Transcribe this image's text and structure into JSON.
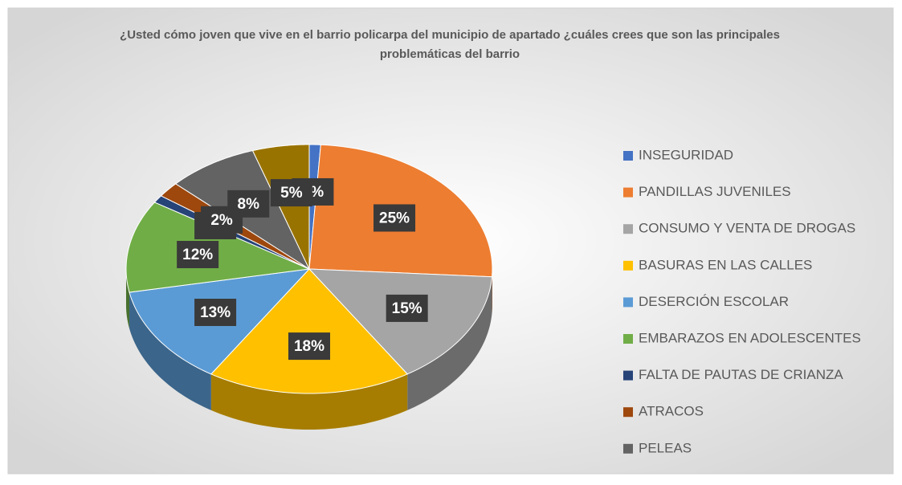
{
  "chart_data": {
    "type": "pie",
    "title": "¿Usted cómo joven que vive en el barrio policarpa del municipio de apartado ¿cuáles crees que son las principales problemáticas del barrio",
    "categories": [
      "INSEGURIDAD",
      "PANDILLAS JUVENILES",
      "CONSUMO Y VENTA DE DROGAS",
      "BASURAS EN LAS CALLES",
      "DESERCIÓN ESCOLAR",
      "EMBARAZOS EN ADOLESCENTES",
      "FALTA DE PAUTAS DE CRIANZA",
      "ATRACOS",
      "PELEAS",
      null
    ],
    "values": [
      1,
      25,
      15,
      18,
      13,
      12,
      1,
      2,
      8,
      5
    ],
    "value_labels": [
      "1%",
      "25%",
      "15%",
      "18%",
      "13%",
      "12%",
      "1%",
      "2%",
      "8%",
      "5%"
    ],
    "colors": [
      "#4472c4",
      "#ed7d31",
      "#a5a5a5",
      "#ffc000",
      "#5b9bd5",
      "#70ad47",
      "#264478",
      "#9e480e",
      "#636363",
      "#997300"
    ],
    "legend": "right"
  }
}
